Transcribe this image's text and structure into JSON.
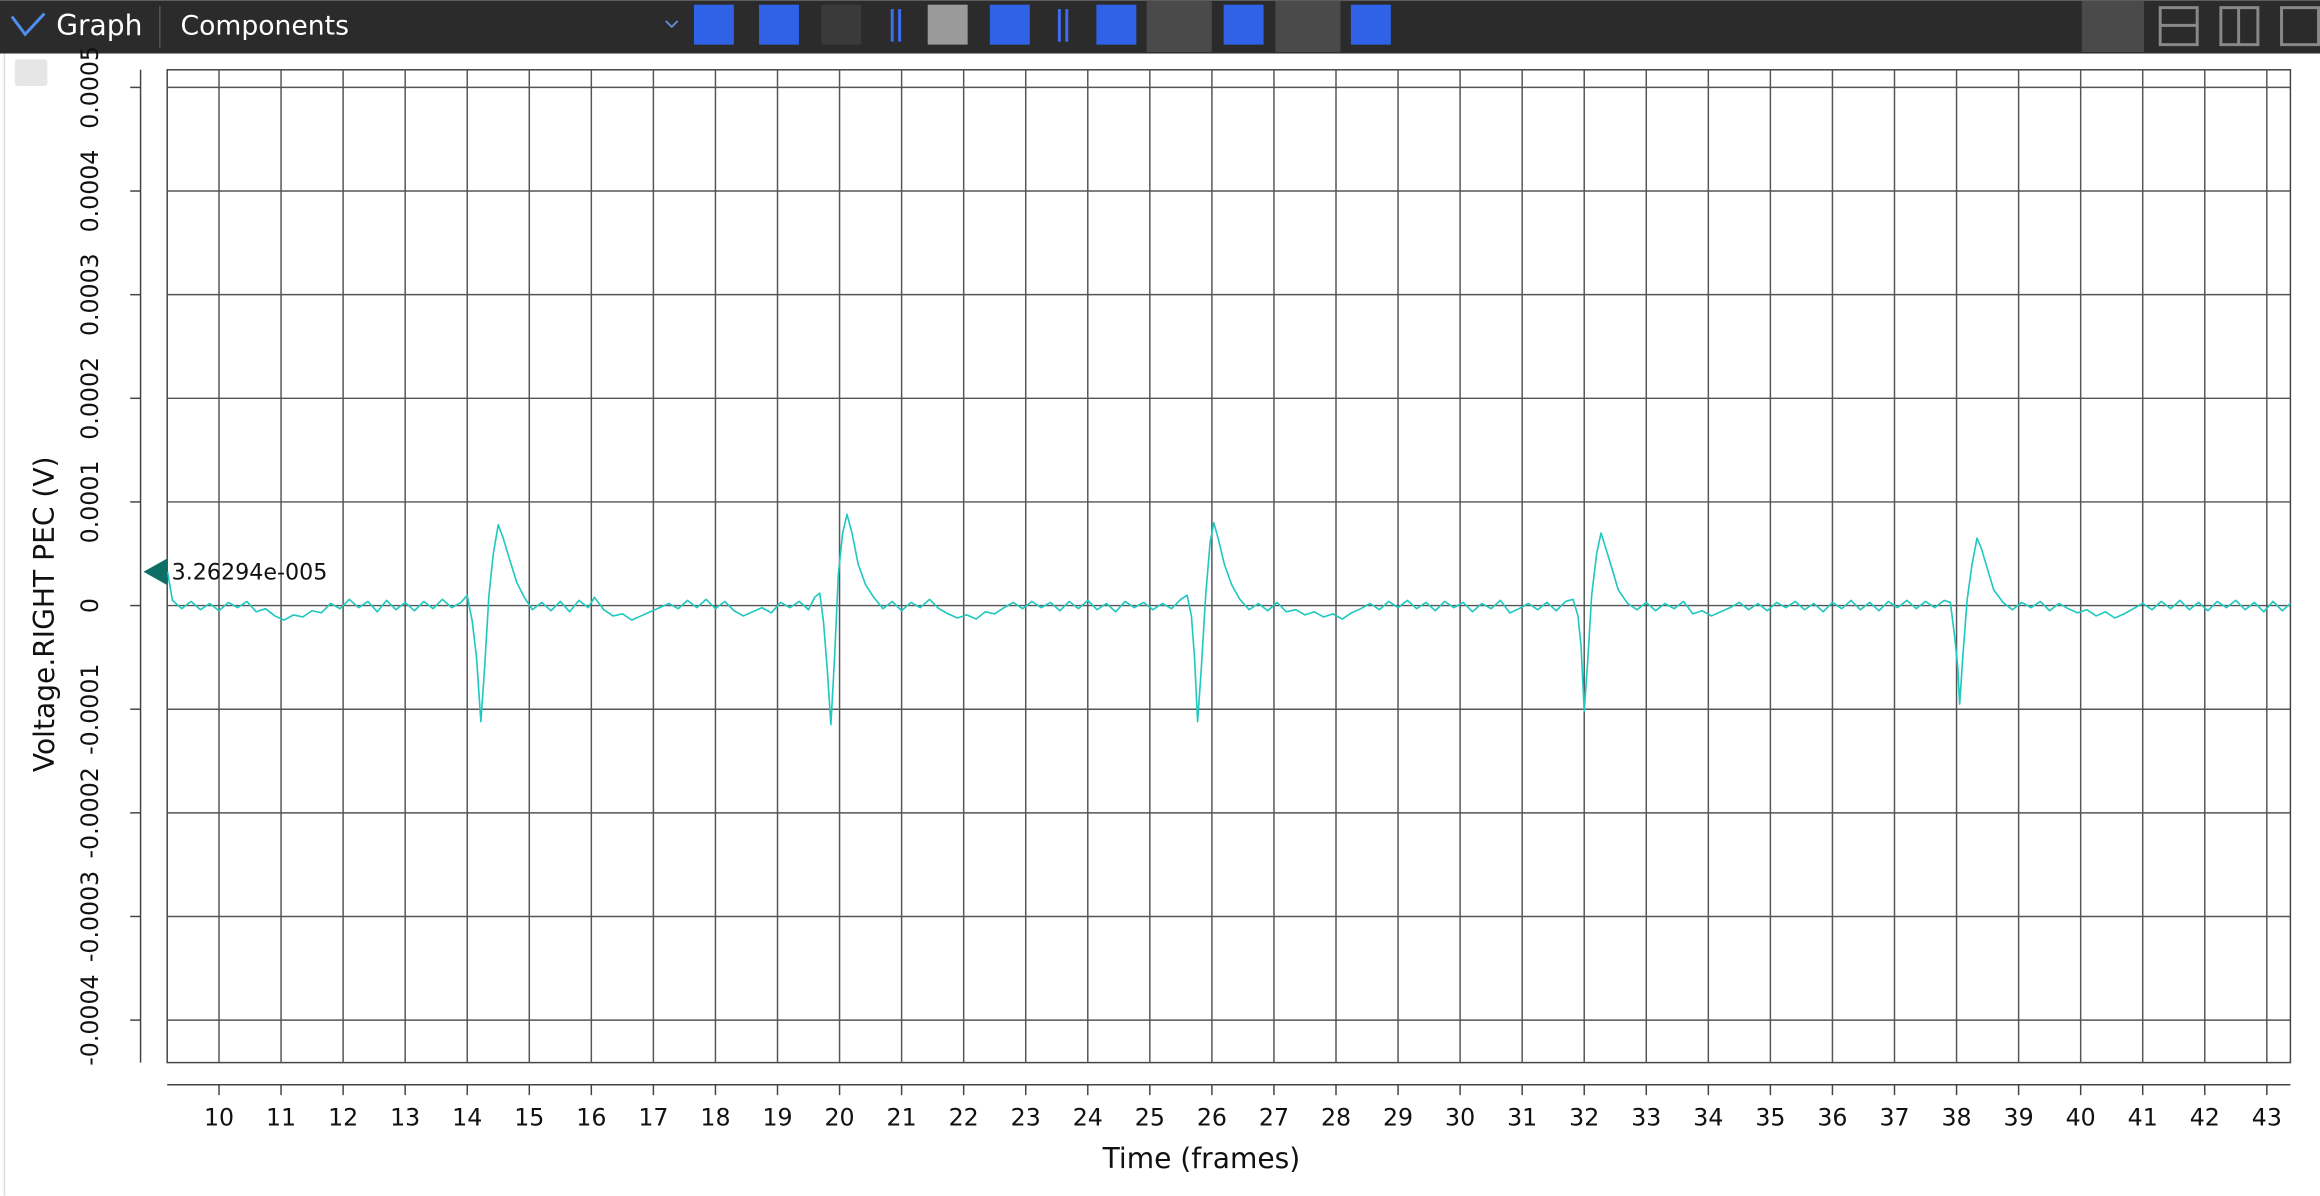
{
  "toolbar": {
    "title": "Graph",
    "tab": "Components"
  },
  "chart_data": {
    "type": "line",
    "ylabel": "Voltage.RIGHT PEC (V)",
    "xlabel": "Time (frames)",
    "cursor": {
      "value": 3.26294e-05,
      "label": "3.26294e-005"
    },
    "xlim": [
      9.165,
      43.38
    ],
    "ylim": [
      -0.000441,
      0.000517
    ],
    "xticks": [
      10,
      11,
      12,
      13,
      14,
      15,
      16,
      17,
      18,
      19,
      20,
      21,
      22,
      23,
      24,
      25,
      26,
      27,
      28,
      29,
      30,
      31,
      32,
      33,
      34,
      35,
      36,
      37,
      38,
      39,
      40,
      41,
      42,
      43
    ],
    "yticks": [
      -0.0004,
      -0.0003,
      -0.0002,
      -0.0001,
      0,
      0.0001,
      0.0002,
      0.0003,
      0.0004,
      0.0005
    ],
    "grid": true,
    "x": [
      9.17,
      9.25,
      9.4,
      9.55,
      9.7,
      9.85,
      10.0,
      10.15,
      10.3,
      10.45,
      10.6,
      10.75,
      10.9,
      11.05,
      11.2,
      11.35,
      11.5,
      11.65,
      11.8,
      11.95,
      12.1,
      12.25,
      12.4,
      12.55,
      12.7,
      12.85,
      13.0,
      13.15,
      13.3,
      13.45,
      13.6,
      13.75,
      13.9,
      14.0,
      14.08,
      14.15,
      14.22,
      14.28,
      14.35,
      14.42,
      14.5,
      14.58,
      14.68,
      14.8,
      14.92,
      15.05,
      15.2,
      15.35,
      15.5,
      15.65,
      15.8,
      15.95,
      16.05,
      16.2,
      16.35,
      16.5,
      16.65,
      16.8,
      16.95,
      17.1,
      17.25,
      17.4,
      17.55,
      17.7,
      17.85,
      18.0,
      18.15,
      18.3,
      18.45,
      18.6,
      18.75,
      18.9,
      19.05,
      19.2,
      19.35,
      19.5,
      19.6,
      19.68,
      19.74,
      19.8,
      19.86,
      19.92,
      19.98,
      20.05,
      20.12,
      20.2,
      20.3,
      20.42,
      20.55,
      20.7,
      20.85,
      21.0,
      21.15,
      21.3,
      21.45,
      21.6,
      21.75,
      21.9,
      22.05,
      22.2,
      22.35,
      22.5,
      22.65,
      22.8,
      22.95,
      23.1,
      23.25,
      23.4,
      23.55,
      23.7,
      23.85,
      24.0,
      24.15,
      24.3,
      24.45,
      24.6,
      24.75,
      24.9,
      25.05,
      25.2,
      25.35,
      25.5,
      25.6,
      25.67,
      25.72,
      25.77,
      25.83,
      25.9,
      25.97,
      26.03,
      26.1,
      26.2,
      26.32,
      26.45,
      26.6,
      26.75,
      26.9,
      27.05,
      27.2,
      27.35,
      27.5,
      27.65,
      27.8,
      27.95,
      28.1,
      28.25,
      28.4,
      28.55,
      28.7,
      28.85,
      29.0,
      29.15,
      29.3,
      29.45,
      29.6,
      29.75,
      29.9,
      30.05,
      30.2,
      30.35,
      30.5,
      30.65,
      30.8,
      30.95,
      31.1,
      31.25,
      31.4,
      31.55,
      31.7,
      31.82,
      31.9,
      31.95,
      32.0,
      32.06,
      32.12,
      32.2,
      32.27,
      32.35,
      32.45,
      32.55,
      32.7,
      32.85,
      33.0,
      33.15,
      33.3,
      33.45,
      33.6,
      33.75,
      33.9,
      34.05,
      34.2,
      34.35,
      34.5,
      34.65,
      34.8,
      34.95,
      35.1,
      35.25,
      35.4,
      35.55,
      35.7,
      35.85,
      36.0,
      36.15,
      36.3,
      36.45,
      36.6,
      36.75,
      36.9,
      37.05,
      37.2,
      37.35,
      37.5,
      37.65,
      37.8,
      37.9,
      37.97,
      38.02,
      38.05,
      38.1,
      38.17,
      38.25,
      38.33,
      38.4,
      38.5,
      38.6,
      38.75,
      38.9,
      39.05,
      39.2,
      39.35,
      39.5,
      39.65,
      39.8,
      39.95,
      40.1,
      40.25,
      40.4,
      40.55,
      40.7,
      40.85,
      41.0,
      41.15,
      41.3,
      41.45,
      41.6,
      41.75,
      41.9,
      42.05,
      42.2,
      42.35,
      42.5,
      42.65,
      42.8,
      42.95,
      43.1,
      43.25,
      43.38
    ],
    "series": [
      {
        "color": "#1fc9bf",
        "values": [
          3.26e-05,
          5e-06,
          -3e-06,
          4e-06,
          -4e-06,
          2e-06,
          -5e-06,
          3e-06,
          -2e-06,
          4e-06,
          -6e-06,
          -3e-06,
          -1e-05,
          -1.4e-05,
          -9e-06,
          -1.1e-05,
          -5e-06,
          -7e-06,
          2e-06,
          -3e-06,
          6e-06,
          -2e-06,
          4e-06,
          -6e-06,
          5e-06,
          -4e-06,
          3e-06,
          -5e-06,
          4e-06,
          -3e-06,
          6e-06,
          -2e-06,
          3e-06,
          1e-05,
          -1.5e-05,
          -5e-05,
          -0.000112,
          -6e-05,
          1e-05,
          5e-05,
          7.8e-05,
          6.5e-05,
          4.5e-05,
          2.2e-05,
          8e-06,
          -4e-06,
          3e-06,
          -5e-06,
          4e-06,
          -6e-06,
          5e-06,
          -2e-06,
          8e-06,
          -4e-06,
          -1e-05,
          -8e-06,
          -1.4e-05,
          -1e-05,
          -6e-06,
          -2e-06,
          2e-06,
          -3e-06,
          5e-06,
          -2e-06,
          6e-06,
          -3e-06,
          4e-06,
          -5e-06,
          -1e-05,
          -6e-06,
          -2e-06,
          -7e-06,
          3e-06,
          -2e-06,
          4e-06,
          -4e-06,
          8e-06,
          1.2e-05,
          -1.5e-05,
          -6e-05,
          -0.000115,
          -5e-05,
          3e-05,
          7e-05,
          8.8e-05,
          7e-05,
          4e-05,
          2e-05,
          8e-06,
          -3e-06,
          4e-06,
          -5e-06,
          3e-06,
          -2e-06,
          6e-06,
          -3e-06,
          -8e-06,
          -1.2e-05,
          -9e-06,
          -1.3e-05,
          -6e-06,
          -8e-06,
          -2e-06,
          3e-06,
          -3e-06,
          4e-06,
          -2e-06,
          3e-06,
          -5e-06,
          4e-06,
          -3e-06,
          5e-06,
          -4e-06,
          2e-06,
          -6e-06,
          4e-06,
          -2e-06,
          3e-06,
          -4e-06,
          2e-06,
          -3e-06,
          6e-06,
          1e-05,
          -1e-05,
          -5e-05,
          -0.000112,
          -6e-05,
          1e-05,
          6e-05,
          8e-05,
          6.5e-05,
          4e-05,
          2e-05,
          6e-06,
          -4e-06,
          2e-06,
          -5e-06,
          3e-06,
          -6e-06,
          -4e-06,
          -9e-06,
          -6e-06,
          -1.1e-05,
          -8e-06,
          -1.3e-05,
          -7e-06,
          -3e-06,
          2e-06,
          -4e-06,
          4e-06,
          -2e-06,
          5e-06,
          -3e-06,
          3e-06,
          -5e-06,
          4e-06,
          -2e-06,
          3e-06,
          -6e-06,
          2e-06,
          -3e-06,
          5e-06,
          -7e-06,
          -3e-06,
          2e-06,
          -4e-06,
          3e-06,
          -5e-06,
          4e-06,
          6e-06,
          -1e-05,
          -4e-05,
          -0.000102,
          -5e-05,
          1e-05,
          5e-05,
          7e-05,
          5.5e-05,
          3.5e-05,
          1.5e-05,
          2e-06,
          -4e-06,
          3e-06,
          -5e-06,
          2e-06,
          -3e-06,
          4e-06,
          -8e-06,
          -5e-06,
          -1e-05,
          -6e-06,
          -2e-06,
          3e-06,
          -4e-06,
          2e-06,
          -5e-06,
          3e-06,
          -2e-06,
          4e-06,
          -4e-06,
          2e-06,
          -6e-06,
          3e-06,
          -3e-06,
          5e-06,
          -4e-06,
          3e-06,
          -5e-06,
          4e-06,
          -2e-06,
          5e-06,
          -3e-06,
          4e-06,
          -2e-06,
          5e-06,
          3e-06,
          -3e-05,
          -6e-05,
          -9.5e-05,
          -5e-05,
          5e-06,
          4e-05,
          6.5e-05,
          5.5e-05,
          3.5e-05,
          1.5e-05,
          3e-06,
          -4e-06,
          3e-06,
          -2e-06,
          4e-06,
          -5e-06,
          2e-06,
          -3e-06,
          -7e-06,
          -4e-06,
          -1e-05,
          -6e-06,
          -1.2e-05,
          -8e-06,
          -3e-06,
          2e-06,
          -4e-06,
          4e-06,
          -3e-06,
          5e-06,
          -4e-06,
          3e-06,
          -5e-06,
          4e-06,
          -2e-06,
          5e-06,
          -4e-06,
          3e-06,
          -6e-06,
          4e-06,
          -5e-06,
          2e-06
        ]
      }
    ]
  }
}
